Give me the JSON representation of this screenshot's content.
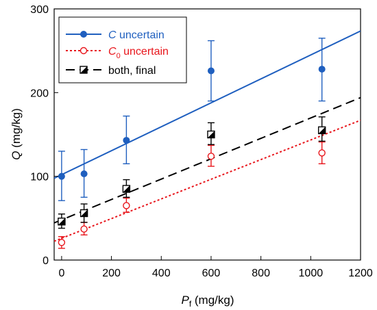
{
  "chart_data": {
    "type": "scatter",
    "title": "",
    "xlabel": {
      "main": "P",
      "sub": "f",
      "unit": " (mg/kg)"
    },
    "ylabel": {
      "main": "Q",
      "unit": " (mg/kg)"
    },
    "xlim": [
      -30,
      1200
    ],
    "ylim": [
      0,
      300
    ],
    "xticks": [
      0,
      200,
      400,
      600,
      800,
      1000,
      1200
    ],
    "yticks": [
      0,
      100,
      200,
      300
    ],
    "grid": false,
    "legend_position": "top-left",
    "series": [
      {
        "id": "c-uncertain",
        "name_main": "C",
        "name_sub": "",
        "name_rest": " uncertain",
        "name_text_color": "#1f5fbf",
        "color": "#1f5fbf",
        "marker": "filled-circle",
        "line_style": "solid",
        "x": [
          0,
          90,
          260,
          600,
          1045
        ],
        "y": [
          100,
          103,
          143,
          226,
          228
        ],
        "err_low": [
          71,
          75,
          115,
          190,
          190
        ],
        "err_high": [
          130,
          132,
          172,
          262,
          265
        ],
        "fit": [
          102,
          0.143
        ]
      },
      {
        "id": "c0-uncertain",
        "name_main": "C",
        "name_sub": "0",
        "name_rest": " uncertain",
        "name_text_color": "#e8151b",
        "color": "#e8151b",
        "marker": "open-circle",
        "line_style": "dotted",
        "x": [
          0,
          90,
          260,
          600,
          1045
        ],
        "y": [
          21,
          37,
          65,
          124,
          128
        ],
        "err_low": [
          14,
          30,
          57,
          112,
          115
        ],
        "err_high": [
          28,
          45,
          74,
          137,
          141
        ],
        "fit": [
          26,
          0.1175
        ]
      },
      {
        "id": "both-final",
        "name_main": "both, final",
        "name_sub": "",
        "name_rest": "",
        "name_text_color": "#000000",
        "color": "#000000",
        "marker": "half-filled-square",
        "line_style": "dashed",
        "x": [
          0,
          90,
          260,
          600,
          1045
        ],
        "y": [
          46,
          56,
          85,
          150,
          155
        ],
        "err_low": [
          38,
          45,
          75,
          138,
          142
        ],
        "err_high": [
          55,
          67,
          96,
          164,
          171
        ],
        "fit": [
          48,
          0.1217
        ]
      }
    ]
  }
}
